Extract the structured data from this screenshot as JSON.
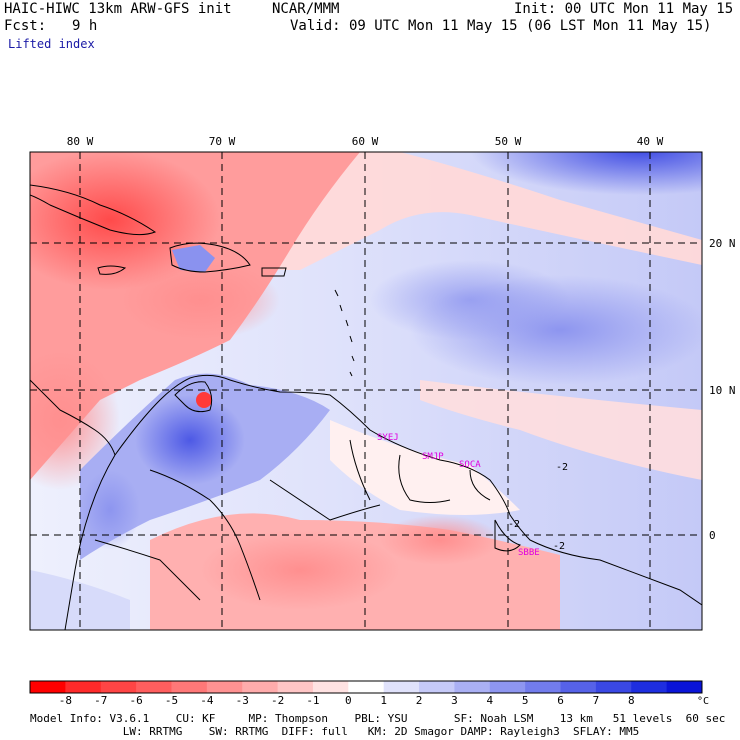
{
  "header": {
    "model_title": "HAIC-HIWC 13km ARW-GFS init",
    "org": "NCAR/MMM",
    "init": "Init: 00 UTC Mon 11 May 15",
    "fcst_label": "Fcst:",
    "fcst_value": "9 h",
    "valid": "Valid: 09 UTC Mon 11 May 15 (06 LST Mon 11 May 15)",
    "field": "Lifted index"
  },
  "map": {
    "lon_labels": [
      "80 W",
      "70 W",
      "60 W",
      "50 W",
      "40 W"
    ],
    "lat_labels": [
      "20 N",
      "10 N",
      "0"
    ],
    "stations": [
      "SYEJ",
      "SMJP",
      "SOCA",
      "SBBE"
    ],
    "contour_labels": [
      "-2",
      "-2",
      "-2"
    ],
    "colors": {
      "negative_strong": "#ff1a1a",
      "negative_weak": "#ffc8c8",
      "neutral": "#ffffff",
      "positive_weak": "#c8cdfa",
      "positive_strong": "#1010e6",
      "coast": "#000000",
      "station": "#e000e0"
    }
  },
  "colorbar": {
    "ticks": [
      "-8",
      "-7",
      "-6",
      "-5",
      "-4",
      "-3",
      "-2",
      "-1",
      "0",
      "1",
      "2",
      "3",
      "4",
      "5",
      "6",
      "7",
      "8"
    ],
    "unit": "°C",
    "colors": [
      "#ff0000",
      "#ff2a2a",
      "#ff4545",
      "#ff5e5e",
      "#ff7878",
      "#ff9292",
      "#ffacac",
      "#ffc6c6",
      "#ffe2e2",
      "#ffffff",
      "#e0e2fb",
      "#c6caf8",
      "#aab0f4",
      "#8e96f0",
      "#727cec",
      "#5662e8",
      "#3a48e4",
      "#1e2ee0",
      "#0a14d8"
    ]
  },
  "footer": {
    "line1": "Model Info: V3.6.1    CU: KF     MP: Thompson    PBL: YSU       SF: Noah LSM    13 km   51 levels  60 sec",
    "line2": "              LW: RRTMG    SW: RRTMG  DIFF: full   KM: 2D Smagor DAMP: Rayleigh3  SFLAY: MM5"
  }
}
